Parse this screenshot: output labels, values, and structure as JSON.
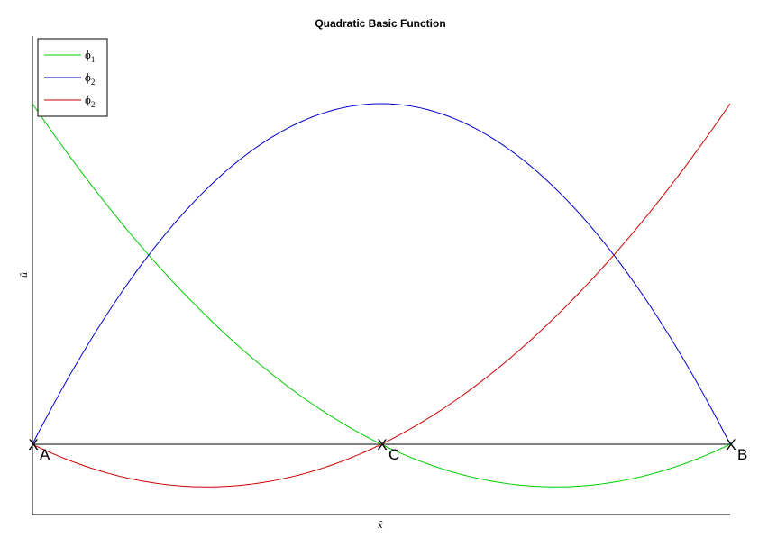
{
  "chart_data": {
    "type": "line",
    "title": "Quadratic Basic Function",
    "xlabel": "x̄",
    "ylabel": "ū",
    "xlim": [
      -1,
      1
    ],
    "ylim": [
      -0.2,
      1
    ],
    "grid": false,
    "legend_position": "top-left",
    "x": [
      -1,
      -0.9,
      -0.8,
      -0.7,
      -0.6,
      -0.5,
      -0.4,
      -0.3,
      -0.2,
      -0.1,
      0,
      0.1,
      0.2,
      0.3,
      0.4,
      0.5,
      0.6,
      0.7,
      0.8,
      0.9,
      1
    ],
    "series": [
      {
        "name": "ϕ1",
        "color": "#00cc00",
        "values": [
          1,
          0.855,
          0.72,
          0.595,
          0.48,
          0.375,
          0.28,
          0.195,
          0.12,
          0.055,
          0,
          -0.045,
          -0.08,
          -0.105,
          -0.12,
          -0.125,
          -0.12,
          -0.105,
          -0.08,
          -0.045,
          0
        ]
      },
      {
        "name": "ϕ2",
        "color": "#0000cc",
        "values": [
          0,
          0.19,
          0.36,
          0.51,
          0.64,
          0.75,
          0.84,
          0.91,
          0.96,
          0.99,
          1,
          0.99,
          0.96,
          0.91,
          0.84,
          0.75,
          0.64,
          0.51,
          0.36,
          0.19,
          0
        ]
      },
      {
        "name": "ϕ2",
        "color": "#cc0000",
        "values": [
          0,
          -0.045,
          -0.08,
          -0.105,
          -0.12,
          -0.125,
          -0.12,
          -0.105,
          -0.08,
          -0.045,
          0,
          0.055,
          0.12,
          0.195,
          0.28,
          0.375,
          0.48,
          0.595,
          0.72,
          0.855,
          1
        ]
      }
    ],
    "legend": [
      {
        "symbol": "ϕ",
        "sub": "1",
        "color": "#00cc00"
      },
      {
        "symbol": "ϕ",
        "sub": "2",
        "color": "#0000cc"
      },
      {
        "symbol": "ϕ",
        "sub": "2",
        "color": "#cc0000"
      }
    ],
    "baseline_y": 0,
    "nodes": [
      {
        "marker": "X",
        "label": "A",
        "x": -1,
        "y": 0
      },
      {
        "marker": "X",
        "label": "C",
        "x": 0,
        "y": 0
      },
      {
        "marker": "X",
        "label": "B",
        "x": 1,
        "y": 0
      }
    ]
  }
}
